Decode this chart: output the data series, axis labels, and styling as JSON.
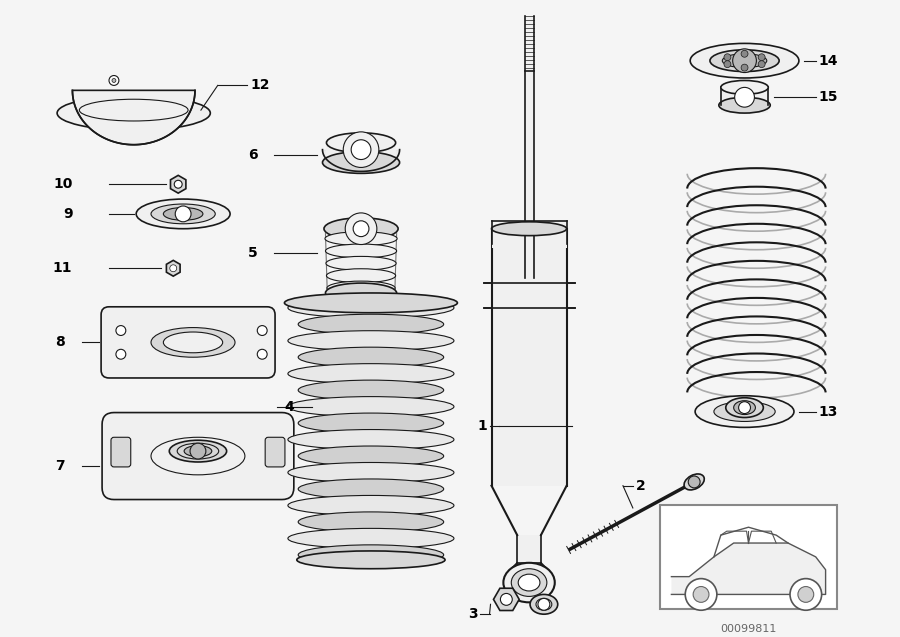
{
  "bg_color": "#f5f5f5",
  "diagram_bg": "#ffffff",
  "part_number_code": "00099811",
  "lc": "#1a1a1a",
  "lw": 1.2,
  "lw_thin": 0.8,
  "label_fs": 10,
  "label_bold": true
}
